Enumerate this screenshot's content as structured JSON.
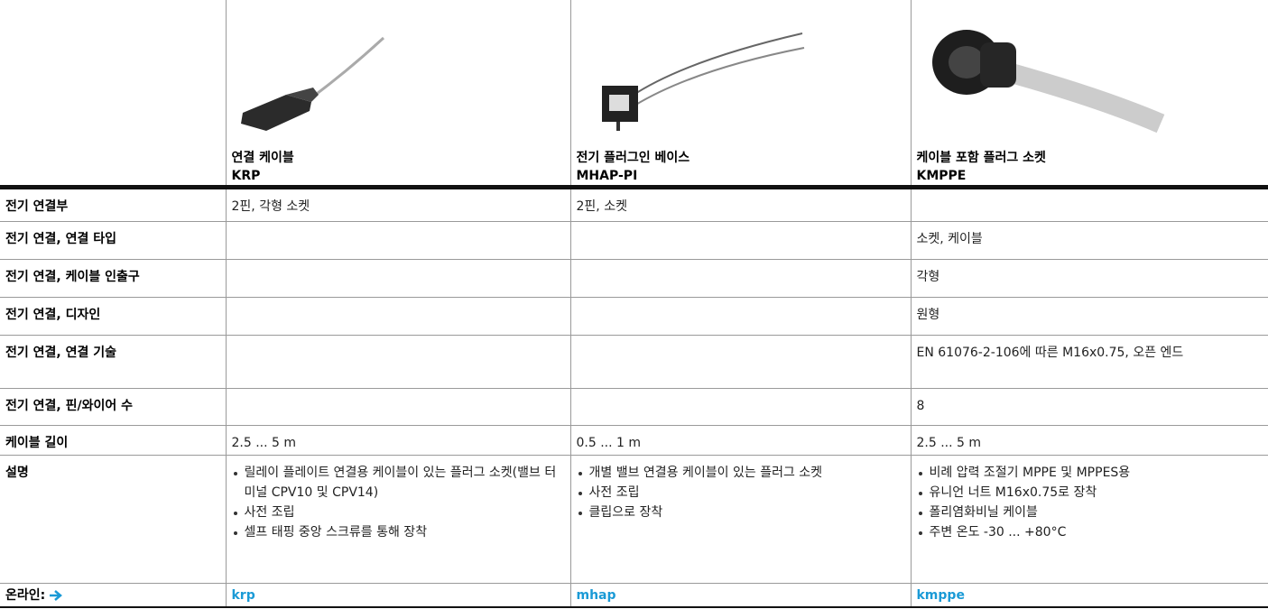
{
  "products": [
    {
      "name": "연결 케이블",
      "code": "KRP"
    },
    {
      "name": "전기 플러그인 베이스",
      "code": "MHAP-PI"
    },
    {
      "name": "케이블 포함 플러그 소켓",
      "code": "KMPPE"
    }
  ],
  "rows": [
    {
      "label": "전기 연결부",
      "cells": [
        "2핀, 각형 소켓",
        "2핀, 소켓",
        ""
      ]
    },
    {
      "label": "전기 연결, 연결 타입",
      "cells": [
        "",
        "",
        "소켓, 케이블"
      ]
    },
    {
      "label": "전기 연결, 케이블 인출구",
      "cells": [
        "",
        "",
        "각형"
      ]
    },
    {
      "label": "전기 연결, 디자인",
      "cells": [
        "",
        "",
        "원형"
      ]
    },
    {
      "label": "전기 연결, 연결 기술",
      "cells": [
        "",
        "",
        "EN 61076-2-106에 따른 M16x0.75, 오픈 엔드"
      ]
    },
    {
      "label": "전기 연결, 핀/와이어 수",
      "cells": [
        "",
        "",
        "8"
      ]
    },
    {
      "label": "케이블 길이",
      "cells": [
        "2.5 ... 5 m",
        "0.5 ... 1 m",
        "2.5 ... 5 m"
      ]
    }
  ],
  "description": {
    "label": "설명",
    "cells": [
      [
        "릴레이 플레이트 연결용 케이블이 있는 플러그 소켓(밸브 터미널 CPV10 및 CPV14)",
        "사전 조립",
        "셀프 태핑 중앙 스크류를 통해 장착"
      ],
      [
        "개별 밸브 연결용 케이블이 있는 플러그 소켓",
        "사전 조립",
        "클립으로 장착"
      ],
      [
        "비례 압력 조절기 MPPE 및 MPPES용",
        "유니언 너트 M16x0.75로 장착",
        "폴리염화비닐 케이블",
        "주변 온도 -30 ... +80°C"
      ]
    ]
  },
  "online": {
    "label": "온라인:",
    "links": [
      "krp",
      "mhap",
      "kmppe"
    ]
  }
}
